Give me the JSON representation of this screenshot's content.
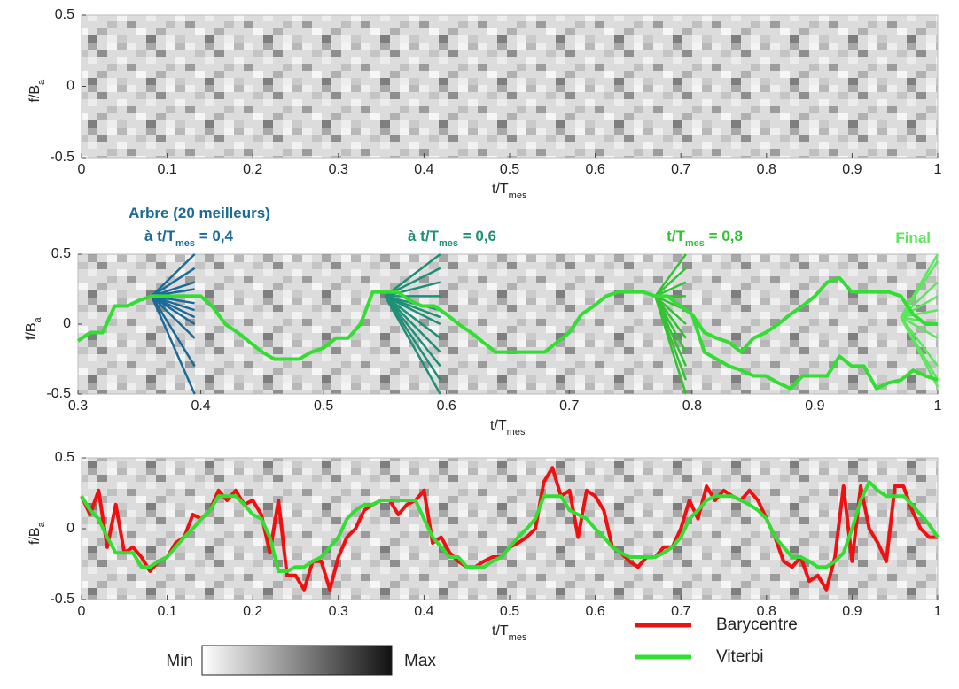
{
  "chart_data": [
    {
      "type": "heatmap",
      "x_label": {
        "text": "t/T",
        "sub": "mes"
      },
      "y_label": {
        "text": "f/B",
        "sub": "a"
      },
      "xlim": [
        0,
        1
      ],
      "ylim": [
        -0.5,
        0.5
      ],
      "xticks": [
        0,
        0.1,
        0.2,
        0.3,
        0.4,
        0.5,
        0.6,
        0.7,
        0.8,
        0.9,
        1
      ],
      "yticks": [
        -0.5,
        0,
        0.5
      ]
    },
    {
      "type": "line",
      "x_label": {
        "text": "t/T",
        "sub": "mes"
      },
      "y_label": {
        "text": "f/B",
        "sub": "a"
      },
      "xlim": [
        0.3,
        1
      ],
      "ylim": [
        -0.5,
        0.5
      ],
      "xticks": [
        0.3,
        0.4,
        0.5,
        0.6,
        0.7,
        0.8,
        0.9,
        1
      ],
      "yticks": [
        -0.5,
        0,
        0.5
      ],
      "annotations": [
        {
          "pre": "Arbre (20 meilleurs)",
          "color": "#1b6a97"
        },
        {
          "pre": "à t/T",
          "sub": "mes",
          "post": " = 0,4",
          "color": "#1b6a97"
        },
        {
          "pre": "à t/T",
          "sub": "mes",
          "post": " = 0,6",
          "color": "#1f8f78"
        },
        {
          "pre": "t/T",
          "sub": "mes",
          "post": " = 0,8",
          "color": "#34c234"
        },
        {
          "pre": "Final",
          "color": "#5ce65c"
        }
      ],
      "tracks": [
        {
          "color": "#33dd33",
          "x": [
            0.3,
            0.31,
            0.32,
            0.33,
            0.34,
            0.35,
            0.36,
            0.37,
            0.38,
            0.39,
            0.4,
            0.41,
            0.42,
            0.43,
            0.44,
            0.45,
            0.46,
            0.47,
            0.48,
            0.49,
            0.5,
            0.51,
            0.52,
            0.53,
            0.54,
            0.55,
            0.56,
            0.57,
            0.58,
            0.59,
            0.6,
            0.61,
            0.62,
            0.63,
            0.64,
            0.65,
            0.66,
            0.67,
            0.68,
            0.69,
            0.7,
            0.71,
            0.72,
            0.73,
            0.74,
            0.75,
            0.76,
            0.77,
            0.78,
            0.79,
            0.8
          ],
          "values": [
            -0.12,
            -0.06,
            -0.06,
            0.13,
            0.13,
            0.17,
            0.2,
            0.2,
            0.2,
            0.2,
            0.2,
            0.12,
            0,
            -0.06,
            -0.13,
            -0.2,
            -0.25,
            -0.25,
            -0.25,
            -0.2,
            -0.17,
            -0.1,
            -0.1,
            0,
            0.23,
            0.23,
            0.23,
            0.17,
            0.13,
            0.13,
            0.07,
            0,
            -0.06,
            -0.13,
            -0.2,
            -0.2,
            -0.2,
            -0.2,
            -0.2,
            -0.13,
            -0.06,
            0.07,
            0.13,
            0.2,
            0.23,
            0.23,
            0.23,
            0.2,
            0.2,
            0.13,
            0.07
          ]
        },
        {
          "color": "#33dd33",
          "x": [
            0.8,
            0.81,
            0.82,
            0.83,
            0.84,
            0.85,
            0.86,
            0.87,
            0.88,
            0.89,
            0.9,
            0.91,
            0.92,
            0.93,
            0.94,
            0.95,
            0.96,
            0.97,
            0.98,
            0.99,
            1
          ],
          "values": [
            0.07,
            -0.06,
            -0.1,
            -0.13,
            -0.2,
            -0.1,
            -0.06,
            0,
            0.07,
            0.13,
            0.2,
            0.3,
            0.33,
            0.23,
            0.23,
            0.23,
            0.23,
            0.2,
            0.07,
            0,
            0
          ]
        },
        {
          "color": "#33dd33",
          "x": [
            0.8,
            0.81,
            0.82,
            0.83,
            0.84,
            0.85,
            0.86,
            0.87,
            0.88,
            0.89,
            0.9,
            0.91,
            0.92,
            0.93,
            0.94,
            0.95,
            0.96,
            0.97,
            0.98,
            0.99,
            1
          ],
          "values": [
            0.07,
            -0.2,
            -0.25,
            -0.3,
            -0.33,
            -0.37,
            -0.37,
            -0.42,
            -0.46,
            -0.37,
            -0.37,
            -0.37,
            -0.23,
            -0.3,
            -0.3,
            -0.46,
            -0.42,
            -0.4,
            -0.33,
            -0.37,
            -0.4
          ]
        }
      ],
      "trees": [
        {
          "color": "#1b6a97",
          "x0": 0.36,
          "y0": 0.2,
          "x1": 0.395,
          "ends": [
            0.5,
            0.4,
            0.3,
            0.25,
            0.2,
            0.15,
            0.1,
            0.05,
            0,
            -0.1,
            -0.3,
            -0.5
          ]
        },
        {
          "color": "#1f8f78",
          "x0": 0.55,
          "y0": 0.2,
          "x1": 0.595,
          "ends": [
            0.5,
            0.4,
            0.3,
            0.2,
            0.1,
            0.05,
            0,
            -0.1,
            -0.2,
            -0.3,
            -0.4,
            -0.5
          ]
        },
        {
          "color": "#34c234",
          "x0": 0.77,
          "y0": 0.2,
          "x1": 0.795,
          "ends": [
            0.5,
            0.4,
            0.3,
            0.2,
            0.1,
            0,
            -0.1,
            -0.2,
            -0.3,
            -0.4,
            -0.5
          ]
        },
        {
          "color": "#5ce65c",
          "x0": 0.97,
          "y0": 0.05,
          "x1": 1,
          "ends": [
            0.5,
            0.45,
            0.3,
            0.2,
            0.1,
            0,
            -0.1,
            -0.3,
            -0.4,
            -0.45
          ]
        }
      ]
    },
    {
      "type": "line",
      "x_label": {
        "text": "t/T",
        "sub": "mes"
      },
      "y_label": {
        "text": "f/B",
        "sub": "a"
      },
      "xlim": [
        0,
        1
      ],
      "ylim": [
        -0.5,
        0.5
      ],
      "xticks": [
        0,
        0.1,
        0.2,
        0.3,
        0.4,
        0.5,
        0.6,
        0.7,
        0.8,
        0.9,
        1
      ],
      "yticks": [
        -0.5,
        0,
        0.5
      ],
      "colorbar": {
        "min_label": "Min",
        "max_label": "Max"
      },
      "x": [
        0,
        0.01,
        0.02,
        0.03,
        0.04,
        0.05,
        0.06,
        0.07,
        0.08,
        0.09,
        0.1,
        0.11,
        0.12,
        0.13,
        0.14,
        0.15,
        0.16,
        0.17,
        0.18,
        0.19,
        0.2,
        0.21,
        0.22,
        0.23,
        0.24,
        0.25,
        0.26,
        0.27,
        0.28,
        0.29,
        0.3,
        0.31,
        0.32,
        0.33,
        0.34,
        0.35,
        0.36,
        0.37,
        0.38,
        0.39,
        0.4,
        0.41,
        0.42,
        0.43,
        0.44,
        0.45,
        0.46,
        0.47,
        0.48,
        0.49,
        0.5,
        0.51,
        0.52,
        0.53,
        0.54,
        0.55,
        0.56,
        0.57,
        0.58,
        0.59,
        0.6,
        0.61,
        0.62,
        0.63,
        0.64,
        0.65,
        0.66,
        0.67,
        0.68,
        0.69,
        0.7,
        0.71,
        0.72,
        0.73,
        0.74,
        0.75,
        0.76,
        0.77,
        0.78,
        0.79,
        0.8,
        0.81,
        0.82,
        0.83,
        0.84,
        0.85,
        0.86,
        0.87,
        0.88,
        0.89,
        0.9,
        0.91,
        0.92,
        0.93,
        0.94,
        0.95,
        0.96,
        0.97,
        0.98,
        0.99,
        1
      ],
      "series": [
        {
          "name": "Barycentre",
          "color": "#ee1111",
          "values": [
            0.23,
            0.1,
            0.27,
            -0.13,
            0.17,
            -0.17,
            -0.13,
            -0.2,
            -0.3,
            -0.23,
            -0.2,
            -0.1,
            -0.06,
            0.1,
            0.07,
            0.13,
            0.27,
            0.2,
            0.27,
            0.17,
            0.2,
            0.1,
            -0.17,
            0.2,
            -0.33,
            -0.33,
            -0.43,
            -0.23,
            -0.23,
            -0.43,
            -0.2,
            -0.06,
            0,
            0.13,
            0.17,
            0.2,
            0.2,
            0.1,
            0.17,
            0.2,
            0.27,
            -0.1,
            -0.06,
            -0.17,
            -0.23,
            -0.27,
            -0.27,
            -0.23,
            -0.2,
            -0.2,
            -0.13,
            -0.1,
            -0.06,
            0,
            0.33,
            0.43,
            0.23,
            0.27,
            -0.06,
            0.27,
            0.23,
            0.13,
            -0.13,
            -0.17,
            -0.23,
            -0.27,
            -0.2,
            -0.2,
            -0.13,
            -0.13,
            0,
            0.2,
            0.07,
            0.3,
            0.2,
            0.27,
            0.23,
            0.2,
            0.27,
            0.2,
            0.07,
            -0.06,
            -0.23,
            -0.27,
            -0.2,
            -0.37,
            -0.33,
            -0.43,
            -0.2,
            0.3,
            -0.23,
            0.3,
            0,
            -0.1,
            -0.23,
            0.3,
            0.3,
            0.13,
            0,
            -0.06,
            -0.06
          ]
        },
        {
          "name": "Viterbi",
          "color": "#33dd33",
          "values": [
            0.23,
            0.13,
            0.07,
            -0.06,
            -0.17,
            -0.17,
            -0.17,
            -0.27,
            -0.27,
            -0.23,
            -0.2,
            -0.13,
            -0.06,
            0,
            0.07,
            0.13,
            0.23,
            0.23,
            0.23,
            0.17,
            0.1,
            0.07,
            -0.06,
            -0.3,
            -0.3,
            -0.27,
            -0.27,
            -0.23,
            -0.2,
            -0.13,
            -0.06,
            0.07,
            0.13,
            0.17,
            0.17,
            0.2,
            0.2,
            0.2,
            0.2,
            0.2,
            0.07,
            -0.06,
            -0.13,
            -0.2,
            -0.2,
            -0.27,
            -0.27,
            -0.27,
            -0.23,
            -0.2,
            -0.13,
            -0.06,
            0,
            0.07,
            0.23,
            0.23,
            0.23,
            0.13,
            0.1,
            0.07,
            0,
            -0.06,
            -0.13,
            -0.17,
            -0.2,
            -0.2,
            -0.2,
            -0.2,
            -0.17,
            -0.13,
            -0.06,
            0.07,
            0.13,
            0.2,
            0.23,
            0.23,
            0.23,
            0.2,
            0.17,
            0.13,
            0.07,
            -0.06,
            -0.13,
            -0.2,
            -0.2,
            -0.23,
            -0.27,
            -0.27,
            -0.23,
            -0.17,
            0,
            0.2,
            0.33,
            0.27,
            0.23,
            0.23,
            0.23,
            0.17,
            0.1,
            0.03,
            -0.06
          ]
        }
      ]
    }
  ]
}
